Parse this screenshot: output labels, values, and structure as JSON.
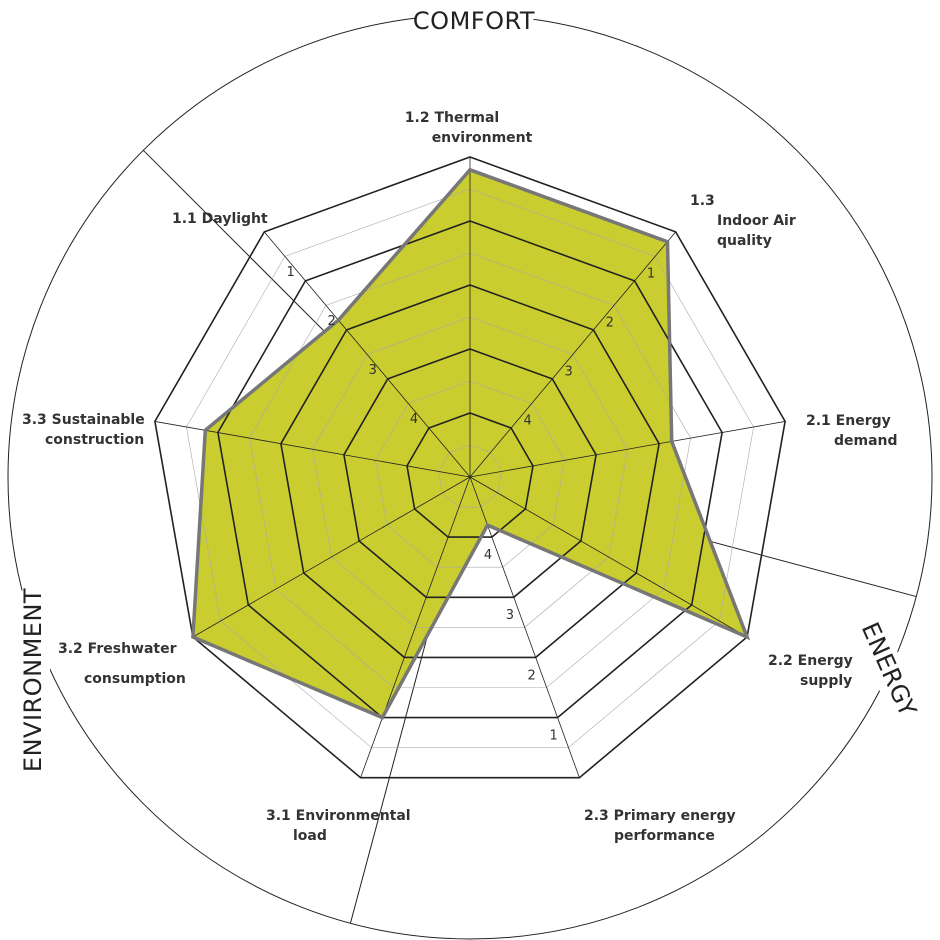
{
  "colors": {
    "fill": "#c9cd2f",
    "outline": "#777777",
    "grid_major": "#222222",
    "grid_minor": "#aaaaaa"
  },
  "chart_data": {
    "type": "radar",
    "scale": {
      "outer": 0,
      "center": 5,
      "ticks": [
        1,
        2,
        3,
        4
      ]
    },
    "groups": [
      {
        "label": "COMFORT",
        "axes": [
          "1.1 Daylight",
          "1.2 Thermal environment",
          "1.3 Indoor Air quality"
        ]
      },
      {
        "label": "ENERGY",
        "axes": [
          "2.1 Energy demand",
          "2.2 Energy supply",
          "2.3 Primary energy performance"
        ]
      },
      {
        "label": "ENVIRONMENT",
        "axes": [
          "3.1 Environmental load",
          "3.2 Freshwater consumption",
          "3.3 Sustainable construction"
        ]
      }
    ],
    "axes": [
      {
        "id": "1.2",
        "label_lines": [
          "1.2 Thermal",
          "environment"
        ],
        "value": 0.2
      },
      {
        "id": "1.3",
        "label_lines": [
          "1.3",
          "Indoor Air",
          "quality"
        ],
        "value": 0.2
      },
      {
        "id": "2.1",
        "label_lines": [
          "2.1 Energy",
          "demand"
        ],
        "value": 1.8
      },
      {
        "id": "2.2",
        "label_lines": [
          "2.2 Energy",
          "supply"
        ],
        "value": 0.0
      },
      {
        "id": "2.3",
        "label_lines": [
          "2.3 Primary energy",
          "performance"
        ],
        "value": 4.2
      },
      {
        "id": "3.1",
        "label_lines": [
          "3.1 Environmental",
          "load"
        ],
        "value": 1.0
      },
      {
        "id": "3.2",
        "label_lines": [
          "3.2 Freshwater",
          "consumption"
        ],
        "value": 0.0
      },
      {
        "id": "3.3",
        "label_lines": [
          "3.3 Sustainable",
          "construction"
        ],
        "value": 0.8
      },
      {
        "id": "1.1",
        "label_lines": [
          "1.1 Daylight"
        ],
        "value": 1.8
      }
    ],
    "tick_label_axes": [
      "1.1",
      "1.3",
      "2.3"
    ]
  }
}
